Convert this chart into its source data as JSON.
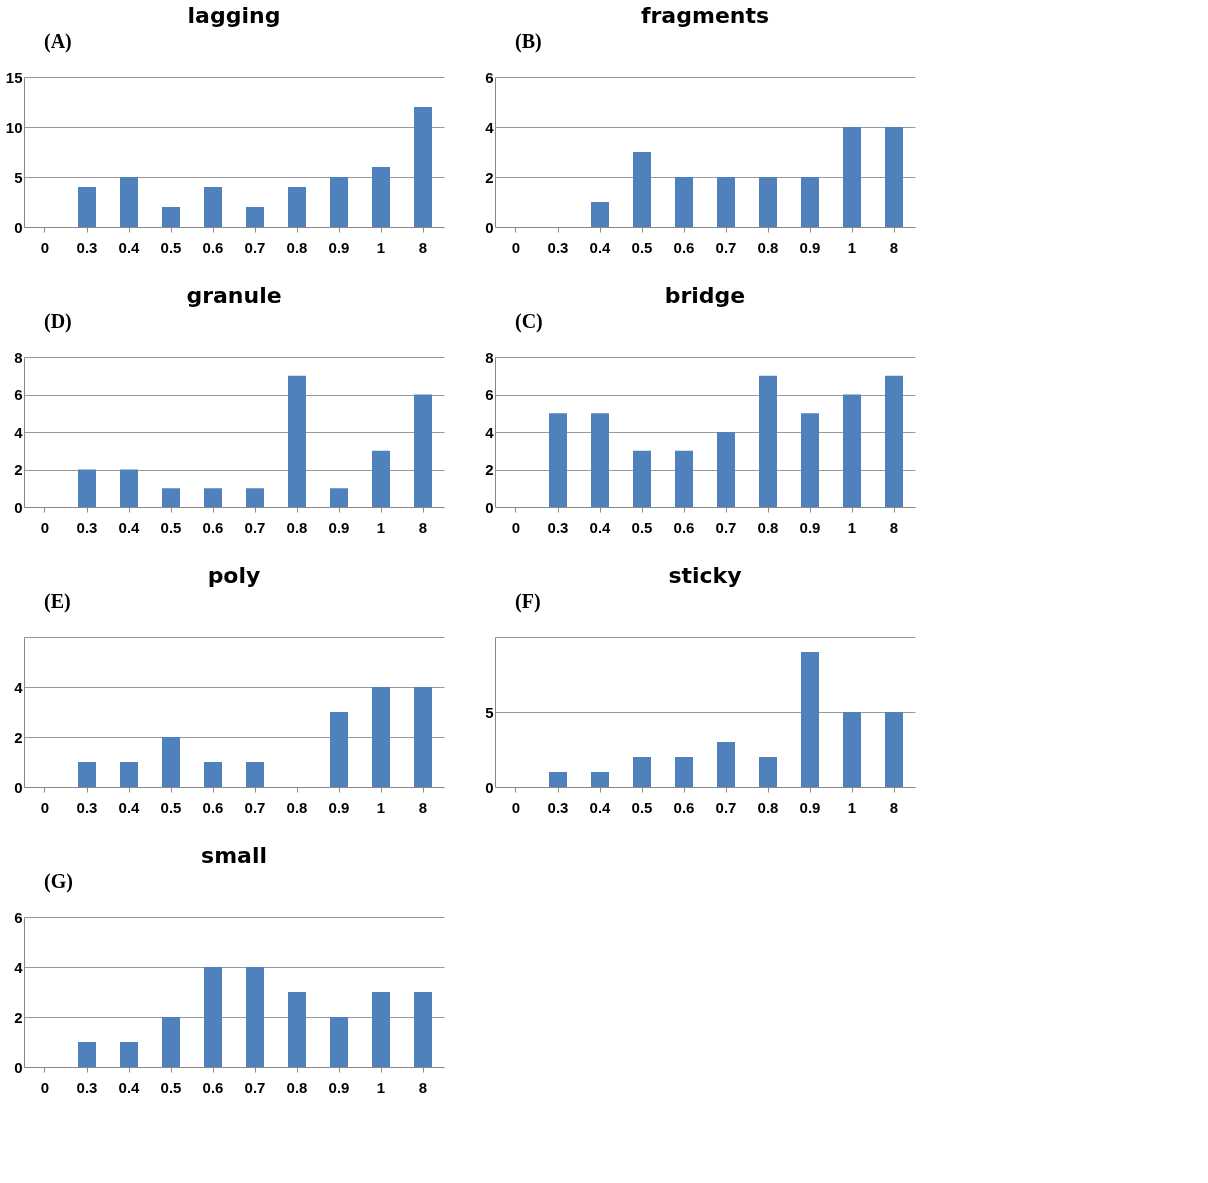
{
  "chart_data": [
    {
      "type": "bar",
      "title": "lagging",
      "annotations": [
        "(A)"
      ],
      "categories": [
        "0",
        "0.3",
        "0.4",
        "0.5",
        "0.6",
        "0.7",
        "0.8",
        "0.9",
        "1",
        "8"
      ],
      "values": [
        0,
        4,
        5,
        2,
        4,
        2,
        4,
        5,
        6,
        12
      ],
      "color": "#4f81bd",
      "ylim": [
        0,
        15
      ],
      "yticks": [
        0,
        5,
        10,
        15
      ],
      "grid": "y"
    },
    {
      "type": "bar",
      "title": "fragments",
      "annotations": [
        "(B)"
      ],
      "categories": [
        "0",
        "0.3",
        "0.4",
        "0.5",
        "0.6",
        "0.7",
        "0.8",
        "0.9",
        "1",
        "8"
      ],
      "values": [
        0,
        0,
        1,
        3,
        2,
        2,
        2,
        2,
        4,
        4
      ],
      "color": "#4f81bd",
      "ylim": [
        0,
        6
      ],
      "yticks": [
        0,
        2,
        4,
        6
      ],
      "grid": "y"
    },
    {
      "type": "bar",
      "title": "granule",
      "annotations": [
        "(D)"
      ],
      "categories": [
        "0",
        "0.3",
        "0.4",
        "0.5",
        "0.6",
        "0.7",
        "0.8",
        "0.9",
        "1",
        "8"
      ],
      "values": [
        0,
        2,
        2,
        1,
        1,
        1,
        7,
        1,
        3,
        6
      ],
      "color": "#4f81bd",
      "ylim": [
        0,
        8
      ],
      "yticks": [
        0,
        2,
        4,
        6,
        8
      ],
      "grid": "y"
    },
    {
      "type": "bar",
      "title": "bridge",
      "annotations": [
        "(C)"
      ],
      "categories": [
        "0",
        "0.3",
        "0.4",
        "0.5",
        "0.6",
        "0.7",
        "0.8",
        "0.9",
        "1",
        "8"
      ],
      "values": [
        0,
        5,
        5,
        3,
        3,
        4,
        7,
        5,
        6,
        7
      ],
      "color": "#4f81bd",
      "ylim": [
        0,
        8
      ],
      "yticks": [
        0,
        2,
        4,
        6,
        8
      ],
      "grid": "y"
    },
    {
      "type": "bar",
      "title": "poly",
      "annotations": [
        "(E)"
      ],
      "categories": [
        "0",
        "0.3",
        "0.4",
        "0.5",
        "0.6",
        "0.7",
        "0.8",
        "0.9",
        "1",
        "8"
      ],
      "values": [
        0,
        1,
        1,
        2,
        1,
        1,
        0,
        3,
        4,
        4
      ],
      "color": "#4f81bd",
      "ylim": [
        0,
        6
      ],
      "yticks": [
        0,
        2,
        4,
        {
          "value": 6,
          "label": null
        }
      ],
      "grid": "y"
    },
    {
      "type": "bar",
      "title": "sticky",
      "annotations": [
        "(F)"
      ],
      "categories": [
        "0",
        "0.3",
        "0.4",
        "0.5",
        "0.6",
        "0.7",
        "0.8",
        "0.9",
        "1",
        "8"
      ],
      "values": [
        0,
        1,
        1,
        2,
        2,
        3,
        2,
        9,
        5,
        5
      ],
      "color": "#4f81bd",
      "ylim": [
        0,
        10
      ],
      "yticks": [
        0,
        5,
        {
          "value": 10,
          "label": null
        }
      ],
      "grid": "y"
    },
    {
      "type": "bar",
      "title": "small",
      "annotations": [
        "(G)"
      ],
      "categories": [
        "0",
        "0.3",
        "0.4",
        "0.5",
        "0.6",
        "0.7",
        "0.8",
        "0.9",
        "1",
        "8"
      ],
      "values": [
        0,
        1,
        1,
        2,
        4,
        4,
        3,
        2,
        3,
        3
      ],
      "color": "#4f81bd",
      "ylim": [
        0,
        6
      ],
      "yticks": [
        0,
        2,
        4,
        6
      ],
      "grid": "y"
    }
  ]
}
